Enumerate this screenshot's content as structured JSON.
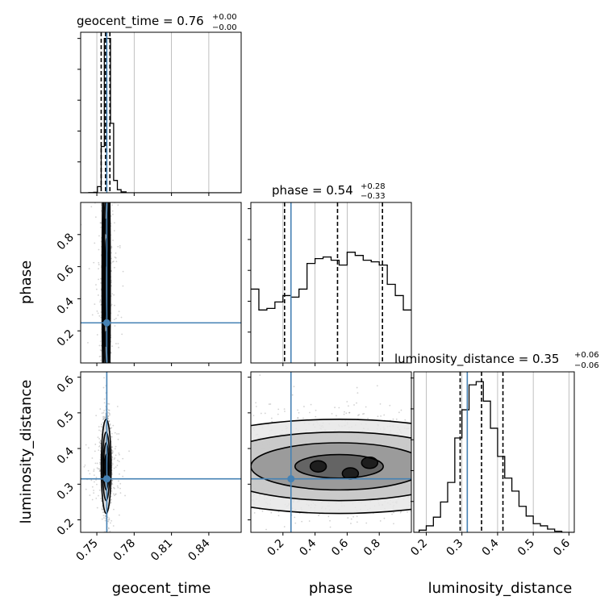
{
  "chart_data": {
    "type": "corner",
    "colors": {
      "truth": "#4682b4",
      "line": "#000000",
      "grid": "#b0b0b0",
      "point": "#7f7f7f"
    },
    "parameters": [
      {
        "name": "geocent_time",
        "range": [
          0.737,
          0.866
        ],
        "ticks": [
          0.75,
          0.78,
          0.81,
          0.84
        ],
        "tick_labels": [
          "0.75",
          "0.78",
          "0.81",
          "0.84"
        ],
        "truth": 0.758
      },
      {
        "name": "phase",
        "range": [
          0.0,
          1.0
        ],
        "ticks": [
          0.2,
          0.4,
          0.6,
          0.8
        ],
        "tick_labels": [
          "0.2",
          "0.4",
          "0.6",
          "0.8"
        ],
        "truth": 0.25
      },
      {
        "name": "luminosity_distance",
        "range": [
          0.165,
          0.615
        ],
        "ticks": [
          0.2,
          0.3,
          0.4,
          0.5,
          0.6
        ],
        "tick_labels": [
          "0.2",
          "0.3",
          "0.4",
          "0.5",
          "0.6"
        ],
        "truth": 0.315
      }
    ],
    "titles": [
      {
        "text": "geocent_time = 0.76",
        "sup": "+0.00",
        "sub": "−0.00"
      },
      {
        "text": "phase = 0.54",
        "sup": "+0.28",
        "sub": "−0.33"
      },
      {
        "text": "luminosity_distance = 0.35",
        "sup": "+0.06",
        "sub": "−0.06"
      }
    ],
    "histograms": [
      {
        "param": "geocent_time",
        "bin_edges": [
          0.737,
          0.7435,
          0.7475,
          0.7505,
          0.7535,
          0.756,
          0.7585,
          0.761,
          0.7635,
          0.7665,
          0.7695,
          0.7735,
          0.866
        ],
        "counts": [
          0,
          1,
          3,
          40,
          300,
          1000,
          1000,
          450,
          80,
          20,
          6,
          0
        ],
        "quantiles": [
          0.7535,
          0.757,
          0.7605
        ],
        "max_count": 1040
      },
      {
        "param": "phase",
        "bin_edges": [
          0.0,
          0.05,
          0.1,
          0.15,
          0.2,
          0.25,
          0.3,
          0.35,
          0.4,
          0.45,
          0.5,
          0.55,
          0.6,
          0.65,
          0.7,
          0.75,
          0.8,
          0.85,
          0.9,
          0.95,
          1.0
        ],
        "counts": [
          460,
          330,
          340,
          380,
          420,
          410,
          460,
          620,
          650,
          660,
          640,
          610,
          690,
          670,
          640,
          630,
          610,
          490,
          420,
          330
        ],
        "quantiles": [
          0.21,
          0.54,
          0.82
        ],
        "max_count": 1000
      },
      {
        "param": "luminosity_distance",
        "bin_edges": [
          0.165,
          0.18,
          0.2,
          0.22,
          0.24,
          0.26,
          0.28,
          0.3,
          0.32,
          0.34,
          0.36,
          0.38,
          0.4,
          0.42,
          0.44,
          0.46,
          0.48,
          0.5,
          0.52,
          0.54,
          0.56,
          0.58,
          0.6,
          0.615
        ],
        "counts": [
          0,
          20,
          60,
          140,
          280,
          460,
          870,
          1130,
          1360,
          1390,
          1210,
          960,
          700,
          500,
          380,
          240,
          150,
          80,
          60,
          30,
          10,
          0,
          0
        ],
        "quantiles": [
          0.295,
          0.355,
          0.415
        ],
        "max_count": 1480
      }
    ],
    "scatter_2d": [
      {
        "x": "geocent_time",
        "y": "phase",
        "center": [
          0.7575,
          0.5
        ],
        "spread": [
          0.0015,
          0.5
        ],
        "note": "band"
      },
      {
        "x": "geocent_time",
        "y": "luminosity_distance",
        "center": [
          0.7575,
          0.35
        ],
        "spread": [
          0.0018,
          0.06
        ]
      },
      {
        "x": "phase",
        "y": "luminosity_distance",
        "center": [
          0.55,
          0.35
        ],
        "spread": [
          0.5,
          0.06
        ],
        "note": "band"
      }
    ]
  }
}
